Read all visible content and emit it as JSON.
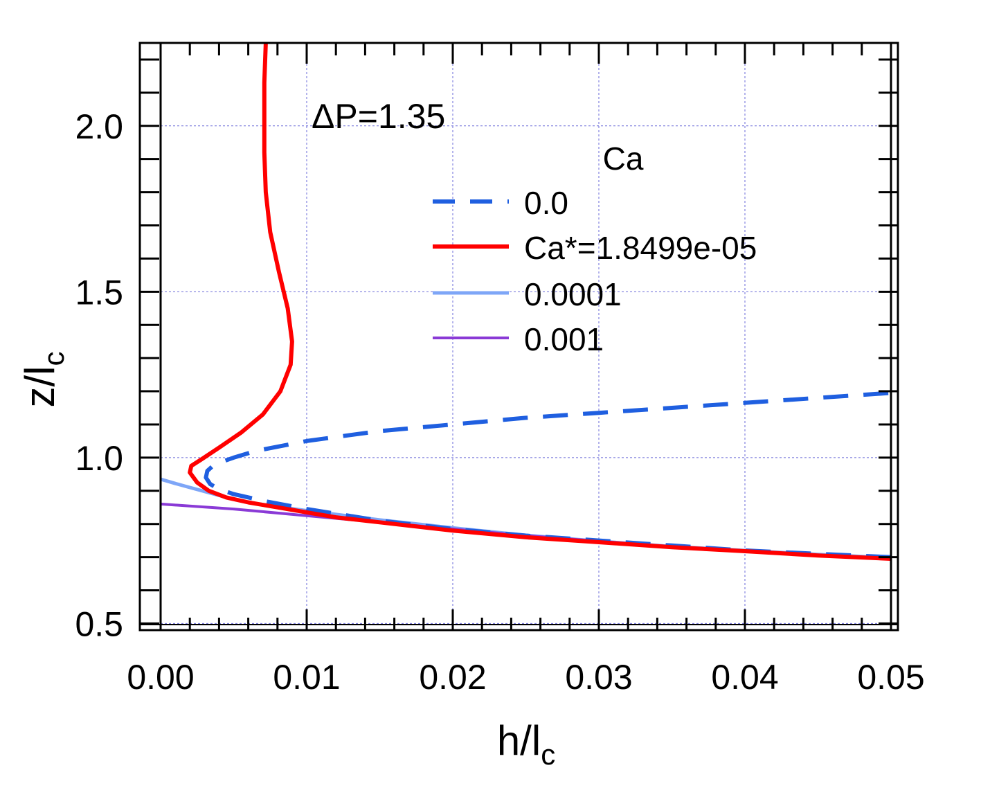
{
  "chart_data": {
    "type": "line",
    "annotation": "ΔP=1.35",
    "xlabel": {
      "main": "h/l",
      "sub": "c"
    },
    "ylabel": {
      "main": "z/l",
      "sub": "c"
    },
    "xlim": [
      0.0,
      0.05
    ],
    "ylim": [
      0.48,
      2.25
    ],
    "x_ticks": [
      0.0,
      0.01,
      0.02,
      0.03,
      0.04,
      0.05
    ],
    "x_tick_labels": [
      "0.00",
      "0.01",
      "0.02",
      "0.03",
      "0.04",
      "0.05"
    ],
    "y_ticks": [
      0.5,
      1.0,
      1.5,
      2.0
    ],
    "y_tick_labels": [
      "0.5",
      "1.0",
      "1.5",
      "2.0"
    ],
    "grid": true,
    "legend": {
      "title": "Ca",
      "position": "top-right"
    },
    "series": [
      {
        "name": "0.0",
        "color": "#1f5fe0",
        "dash": "dashed",
        "points": [
          [
            0.05,
            0.7
          ],
          [
            0.045,
            0.71
          ],
          [
            0.04,
            0.72
          ],
          [
            0.035,
            0.735
          ],
          [
            0.03,
            0.75
          ],
          [
            0.025,
            0.765
          ],
          [
            0.02,
            0.785
          ],
          [
            0.015,
            0.81
          ],
          [
            0.01,
            0.845
          ],
          [
            0.007,
            0.87
          ],
          [
            0.005,
            0.89
          ],
          [
            0.004,
            0.905
          ],
          [
            0.0034,
            0.92
          ],
          [
            0.0031,
            0.94
          ],
          [
            0.0032,
            0.96
          ],
          [
            0.0037,
            0.98
          ],
          [
            0.005,
            1.0
          ],
          [
            0.0065,
            1.02
          ],
          [
            0.01,
            1.05
          ],
          [
            0.015,
            1.08
          ],
          [
            0.02,
            1.1
          ],
          [
            0.025,
            1.12
          ],
          [
            0.03,
            1.135
          ],
          [
            0.035,
            1.15
          ],
          [
            0.04,
            1.165
          ],
          [
            0.045,
            1.18
          ],
          [
            0.05,
            1.195
          ]
        ]
      },
      {
        "name": "Ca*=1.8499e-05",
        "color": "#ff0000",
        "dash": "solid",
        "points": [
          [
            0.05,
            0.695
          ],
          [
            0.045,
            0.705
          ],
          [
            0.04,
            0.718
          ],
          [
            0.035,
            0.73
          ],
          [
            0.03,
            0.745
          ],
          [
            0.025,
            0.76
          ],
          [
            0.02,
            0.78
          ],
          [
            0.015,
            0.805
          ],
          [
            0.012,
            0.82
          ],
          [
            0.01,
            0.835
          ],
          [
            0.008,
            0.85
          ],
          [
            0.006,
            0.865
          ],
          [
            0.0045,
            0.88
          ],
          [
            0.0033,
            0.9
          ],
          [
            0.0025,
            0.925
          ],
          [
            0.002,
            0.955
          ],
          [
            0.0021,
            0.975
          ],
          [
            0.0028,
            0.995
          ],
          [
            0.004,
            1.03
          ],
          [
            0.0055,
            1.075
          ],
          [
            0.007,
            1.13
          ],
          [
            0.0082,
            1.2
          ],
          [
            0.0089,
            1.28
          ],
          [
            0.009,
            1.35
          ],
          [
            0.0087,
            1.45
          ],
          [
            0.0081,
            1.56
          ],
          [
            0.0075,
            1.68
          ],
          [
            0.0072,
            1.8
          ],
          [
            0.0071,
            1.92
          ],
          [
            0.0071,
            2.04
          ],
          [
            0.0071,
            2.13
          ],
          [
            0.0072,
            2.25
          ]
        ]
      },
      {
        "name": "0.0001",
        "color": "#7ea6f7",
        "dash": "solid",
        "points": [
          [
            0.0,
            0.935
          ],
          [
            0.001,
            0.922
          ],
          [
            0.002,
            0.91
          ],
          [
            0.003,
            0.898
          ],
          [
            0.004,
            0.886
          ],
          [
            0.005,
            0.875
          ],
          [
            0.006,
            0.865
          ],
          [
            0.0075,
            0.855
          ],
          [
            0.01,
            0.84
          ],
          [
            0.015,
            0.812
          ],
          [
            0.02,
            0.788
          ],
          [
            0.025,
            0.766
          ],
          [
            0.03,
            0.748
          ],
          [
            0.035,
            0.732
          ],
          [
            0.04,
            0.72
          ],
          [
            0.045,
            0.708
          ],
          [
            0.05,
            0.698
          ]
        ]
      },
      {
        "name": "0.001",
        "color": "#8a3ad6",
        "dash": "solid",
        "points": [
          [
            0.0,
            0.86
          ],
          [
            0.005,
            0.845
          ],
          [
            0.01,
            0.825
          ],
          [
            0.015,
            0.805
          ],
          [
            0.02,
            0.785
          ],
          [
            0.025,
            0.765
          ],
          [
            0.03,
            0.748
          ],
          [
            0.035,
            0.732
          ],
          [
            0.04,
            0.718
          ],
          [
            0.045,
            0.706
          ],
          [
            0.05,
            0.695
          ]
        ]
      }
    ]
  }
}
